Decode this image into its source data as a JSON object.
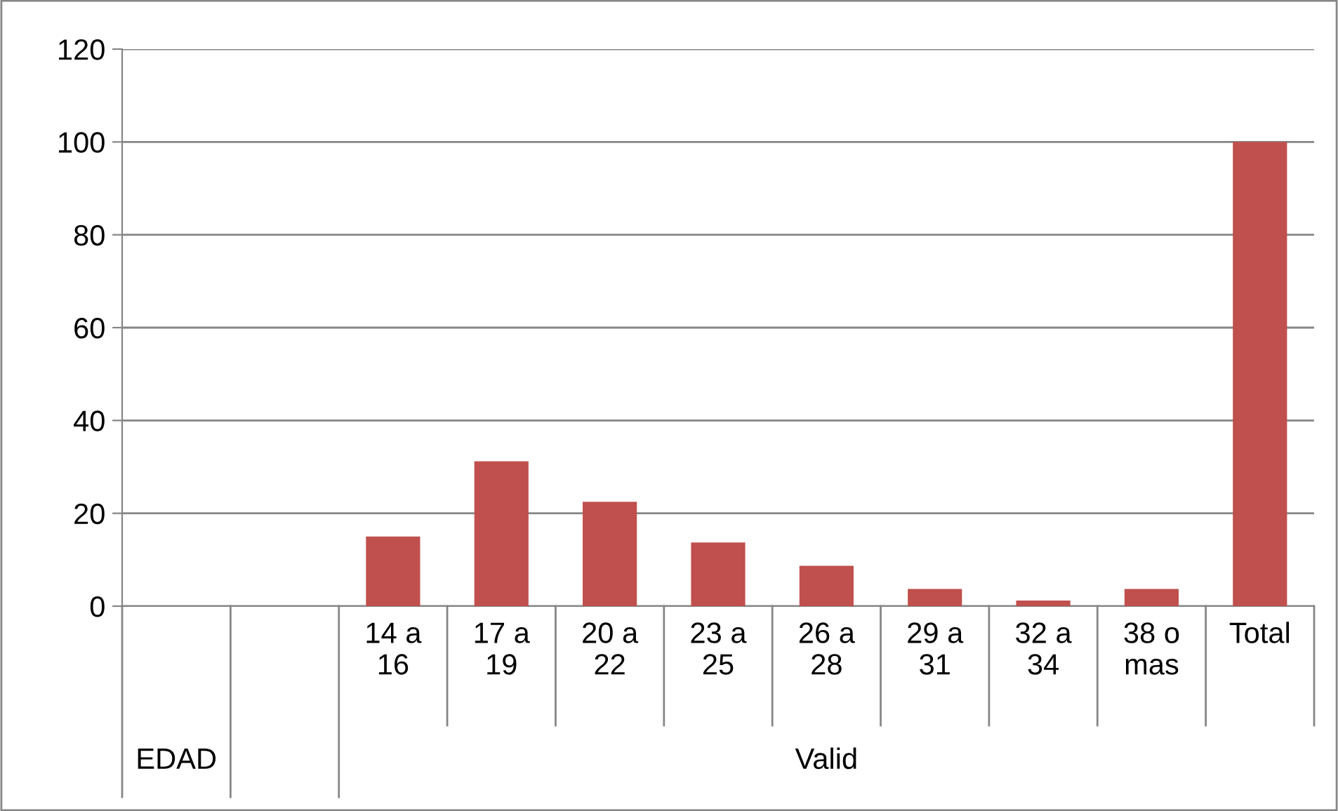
{
  "chart_data": {
    "type": "bar",
    "categories": [
      null,
      null,
      "14 a\n16",
      "17 a\n19",
      "20 a\n22",
      "23 a\n25",
      "26 a\n28",
      "29 a\n31",
      "32 a\n34",
      "38 o\nmas",
      "Total"
    ],
    "values": [
      null,
      null,
      15,
      31.2,
      22.5,
      13.7,
      8.7,
      3.7,
      1.2,
      3.7,
      100
    ],
    "color": "#c0504d",
    "ylim": [
      0,
      120
    ],
    "yticks": [
      0,
      20,
      40,
      60,
      80,
      100,
      120
    ],
    "grid": "y",
    "annotations": [
      "EDAD",
      "Valid"
    ]
  }
}
